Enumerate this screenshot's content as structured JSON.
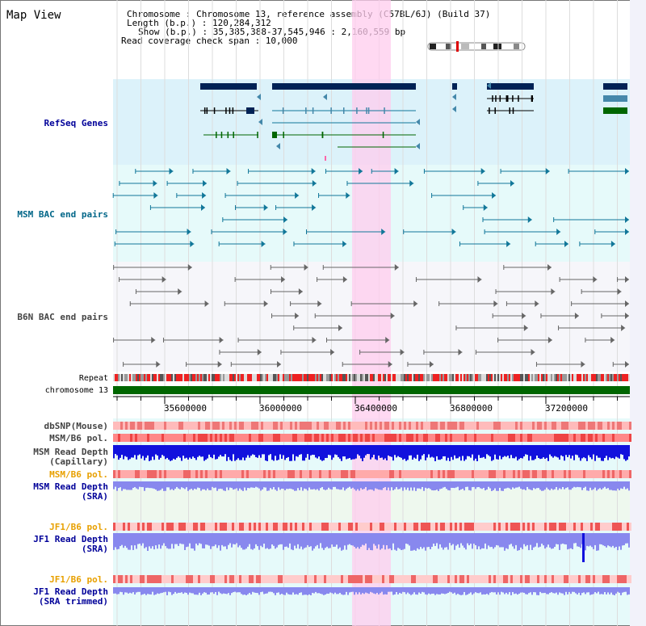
{
  "title": "Map View",
  "info": {
    "line1": "Chromosome    : Chromosome 13, reference assembly (C57BL/6J) (Build 37)",
    "line2": "Length (b.p.) : 120,284,312",
    "line3": "Show (b.p.) : 35,385,388-37,545,946 : 2,160,559 bp",
    "line4": "Read coverage check span : 10,000"
  },
  "ruler": {
    "ticks": [
      "35600000",
      "36000000",
      "36400000",
      "36800000",
      "37200000"
    ]
  },
  "tracks": [
    {
      "id": "refseq",
      "label": "RefSeq Genes",
      "color": "#000099"
    },
    {
      "id": "msm-bac",
      "label": "MSM BAC end pairs",
      "color": "#006688"
    },
    {
      "id": "b6n-bac",
      "label": "B6N BAC end pairs",
      "color": "#444444"
    },
    {
      "id": "repeat",
      "label": "Repeat",
      "color": "#000000"
    },
    {
      "id": "chrom",
      "label": "chromosome 13",
      "color": "#000000"
    },
    {
      "id": "dbsnp",
      "label": "dbSNP(Mouse)",
      "color": "#444444"
    },
    {
      "id": "msm-b6-pol",
      "label": "MSM/B6 pol.",
      "color": "#444444"
    },
    {
      "id": "msm-depth-cap",
      "label": "MSM Read Depth",
      "label2": "(Capillary)",
      "color": "#444444"
    },
    {
      "id": "msm-b6-pol-2",
      "label": "MSM/B6 pol.",
      "color": "#e8a000"
    },
    {
      "id": "msm-depth-sra",
      "label": "MSM Read Depth",
      "label2": "(SRA)",
      "color": "#000099"
    },
    {
      "id": "jf1-b6-pol",
      "label": "JF1/B6 pol.",
      "color": "#e8a000"
    },
    {
      "id": "jf1-depth-sra",
      "label": "JF1 Read Depth",
      "label2": "(SRA)",
      "color": "#000099"
    },
    {
      "id": "jf1-b6-pol-2",
      "label": "JF1/B6 pol.",
      "color": "#e8a000"
    },
    {
      "id": "jf1-depth-trim",
      "label": "JF1 Read Depth",
      "label2": "(SRA trimmed)",
      "color": "#000099"
    }
  ],
  "colors": {
    "refseq_bg": "#dcf2fa",
    "msm_bg": "#e6fafa",
    "b6n_bg": "#f6f6fa",
    "highlight": "#ffccee",
    "gene_dark": "#002255",
    "gene_teal": "#4488aa",
    "gene_green": "#006600",
    "bac_teal": "#117799",
    "bac_gray": "#666666",
    "chrom_green": "#006600",
    "repeat_red": "#ee2222",
    "depth_blue": "#1111dd",
    "depth_light": "#8888ee"
  }
}
